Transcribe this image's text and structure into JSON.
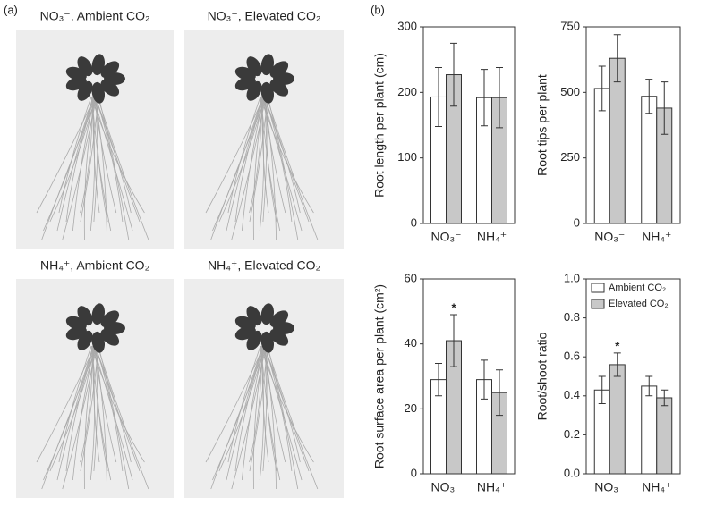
{
  "panel_labels": [
    "(a)",
    "(b)"
  ],
  "photos": [
    "NO₃⁻, Ambient CO₂",
    "NO₃⁻, Elevated CO₂",
    "NH₄⁺, Ambient CO₂",
    "NH₄⁺, Elevated CO₂"
  ],
  "chart_data": [
    {
      "type": "bar",
      "ylabel": "Root length per plant (cm)",
      "categories": [
        "NO₃⁻",
        "NH₄⁺"
      ],
      "series": [
        {
          "name": "Ambient CO₂",
          "color": "#ffffff",
          "values": [
            193,
            192
          ],
          "errors": [
            45,
            43
          ]
        },
        {
          "name": "Elevated CO₂",
          "color": "#c8c8c8",
          "values": [
            227,
            192
          ],
          "errors": [
            48,
            46
          ]
        }
      ],
      "ylim": [
        0,
        300
      ],
      "yticks": [
        0,
        100,
        200,
        300
      ]
    },
    {
      "type": "bar",
      "ylabel": "Root tips per plant",
      "categories": [
        "NO₃⁻",
        "NH₄⁺"
      ],
      "series": [
        {
          "name": "Ambient CO₂",
          "color": "#ffffff",
          "values": [
            515,
            485
          ],
          "errors": [
            85,
            65
          ]
        },
        {
          "name": "Elevated CO₂",
          "color": "#c8c8c8",
          "values": [
            630,
            440
          ],
          "errors": [
            90,
            100
          ]
        }
      ],
      "ylim": [
        0,
        750
      ],
      "yticks": [
        0,
        250,
        500,
        750
      ]
    },
    {
      "type": "bar",
      "ylabel": "Root surface area per plant (cm²)",
      "categories": [
        "NO₃⁻",
        "NH₄⁺"
      ],
      "series": [
        {
          "name": "Ambient CO₂",
          "color": "#ffffff",
          "values": [
            29,
            29
          ],
          "errors": [
            5,
            6
          ]
        },
        {
          "name": "Elevated CO₂",
          "color": "#c8c8c8",
          "values": [
            41,
            25
          ],
          "errors": [
            8,
            7
          ]
        }
      ],
      "ylim": [
        0,
        60
      ],
      "yticks": [
        0,
        20,
        40,
        60
      ],
      "annotations": [
        {
          "text": "*",
          "category": 0,
          "series": 1
        }
      ]
    },
    {
      "type": "bar",
      "ylabel": "Root/shoot ratio",
      "categories": [
        "NO₃⁻",
        "NH₄⁺"
      ],
      "series": [
        {
          "name": "Ambient CO₂",
          "color": "#ffffff",
          "values": [
            0.43,
            0.45
          ],
          "errors": [
            0.07,
            0.05
          ]
        },
        {
          "name": "Elevated CO₂",
          "color": "#c8c8c8",
          "values": [
            0.56,
            0.39
          ],
          "errors": [
            0.06,
            0.04
          ]
        }
      ],
      "ylim": [
        0,
        1
      ],
      "yticks": [
        {
          "value": 0,
          "label": "0.0"
        },
        0.2,
        0.4,
        0.6,
        0.8,
        {
          "value": 1,
          "label": "1.0"
        }
      ],
      "legend": "upper-left",
      "annotations": [
        {
          "text": "*",
          "category": 0,
          "series": 1
        }
      ]
    }
  ]
}
